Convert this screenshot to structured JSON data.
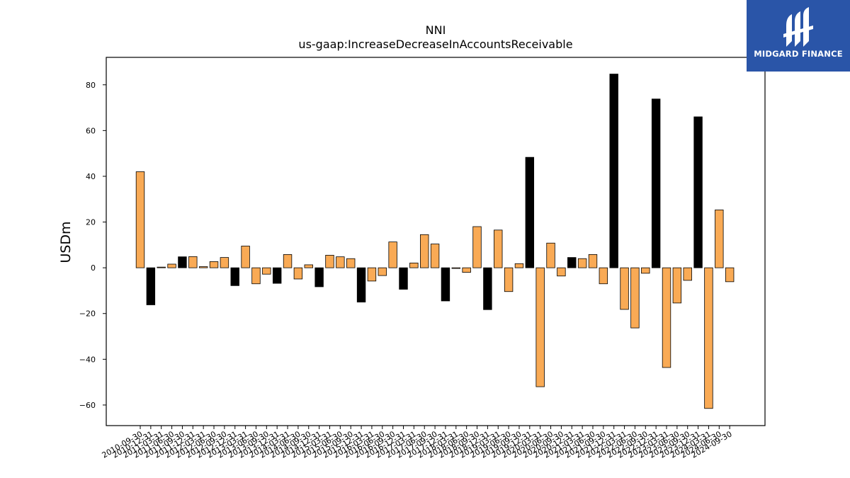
{
  "logo": {
    "text": "MIDGARD FINANCE"
  },
  "chart_data": {
    "type": "bar",
    "title": "NNI",
    "subtitle": "us-gaap:IncreaseDecreaseInAccountsReceivable",
    "xlabel": "",
    "ylabel": "USDm",
    "ylim": [
      -69,
      92
    ],
    "yticks": [
      -60,
      -40,
      -20,
      0,
      20,
      40,
      60,
      80
    ],
    "grid": false,
    "colors": {
      "default": "#f9aa55",
      "highlight": "#000000",
      "edge": "#000000"
    },
    "categories": [
      "2010-09-30",
      "2010-12-31",
      "2011-03-31",
      "2011-06-30",
      "2011-09-30",
      "2011-12-31",
      "2012-03-31",
      "2012-06-30",
      "2012-09-30",
      "2012-12-31",
      "2013-03-31",
      "2013-06-30",
      "2013-09-30",
      "2013-12-31",
      "2014-03-31",
      "2014-06-30",
      "2014-09-30",
      "2014-12-31",
      "2015-03-31",
      "2015-06-30",
      "2015-09-30",
      "2015-12-31",
      "2016-03-31",
      "2016-06-30",
      "2016-09-30",
      "2016-12-31",
      "2017-03-31",
      "2017-06-30",
      "2017-09-30",
      "2017-12-31",
      "2018-03-31",
      "2018-06-30",
      "2018-09-30",
      "2018-12-31",
      "2019-03-31",
      "2019-06-30",
      "2019-09-30",
      "2019-12-31",
      "2020-03-31",
      "2020-06-30",
      "2020-09-30",
      "2020-12-31",
      "2021-03-31",
      "2021-06-30",
      "2021-09-30",
      "2021-12-31",
      "2022-03-31",
      "2022-06-30",
      "2022-09-30",
      "2022-12-31",
      "2023-03-31",
      "2023-06-30",
      "2023-09-30",
      "2023-12-31",
      "2024-03-31",
      "2024-06-30",
      "2024-09-30"
    ],
    "values": [
      42,
      -16.2,
      0.3,
      1.6,
      4.8,
      4.9,
      0.5,
      2.7,
      4.5,
      -7.8,
      9.5,
      -7,
      -2.8,
      -6.8,
      5.8,
      -4.9,
      1.3,
      -8.3,
      5.5,
      4.8,
      4,
      -15,
      -5.8,
      -3.4,
      11.3,
      -9.4,
      2.1,
      14.5,
      10.4,
      -14.5,
      -0.3,
      -2,
      18,
      -18.3,
      16.5,
      -10.4,
      1.8,
      48.3,
      -52,
      10.8,
      -3.6,
      4.5,
      4,
      5.8,
      -7,
      84.7,
      -18.2,
      -26.3,
      -2.4,
      73.8,
      -43.6,
      -15.4,
      -5.5,
      66,
      -61.5,
      25.3,
      -6.1
    ],
    "highlight_indices": [
      1,
      4,
      9,
      13,
      17,
      21,
      25,
      29,
      33,
      37,
      41,
      45,
      49,
      53
    ]
  }
}
